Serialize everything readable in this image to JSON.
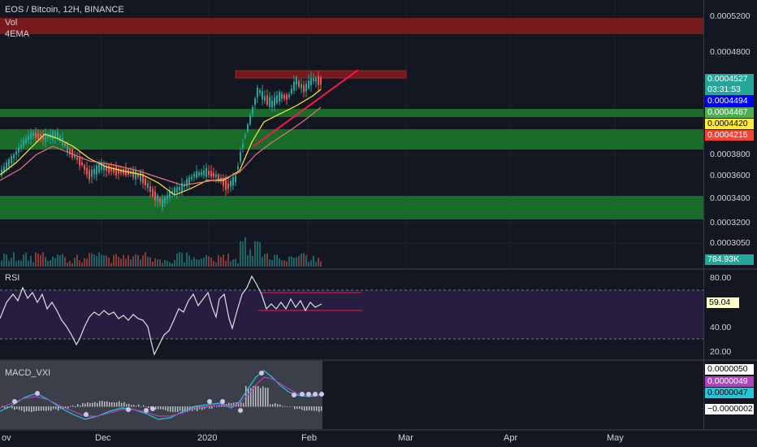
{
  "chart_title": "EOS / Bitcoin, 12H, BINANCE",
  "indicators": {
    "vol": "Vol",
    "ema": "4EMA",
    "rsi": "RSI",
    "macd": "MACD_VXI"
  },
  "price_axis": {
    "ticks": [
      "0.0005200",
      "0.0004800",
      "0.0003800",
      "0.0003600",
      "0.0003400",
      "0.0003200",
      "0.0003050"
    ],
    "current_price": "0.0004527",
    "countdown": "03:31:53",
    "ema_values": [
      {
        "value": "0.0004494",
        "color": "#0000ff"
      },
      {
        "value": "0.0004467",
        "color": "#4caf50"
      },
      {
        "value": "0.0004420",
        "color": "#ffeb3b"
      },
      {
        "value": "0.0004215",
        "color": "#f44336"
      }
    ],
    "volume": "784.93K"
  },
  "rsi_axis": {
    "ticks": [
      "80.00",
      "40.00",
      "20.00"
    ],
    "value": "59.04",
    "upper": 70,
    "lower": 30
  },
  "macd_axis": {
    "values": [
      {
        "value": "0.0000050",
        "color": "#ffffff",
        "text": "#000000"
      },
      {
        "value": "0.0000049",
        "color": "#ab47bc",
        "text": "#ffffff"
      },
      {
        "value": "0.0000047",
        "color": "#26c6da",
        "text": "#000000"
      },
      {
        "value": "−0.0000002",
        "color": "#ffffff",
        "text": "#000000"
      }
    ]
  },
  "time_axis": [
    "ov",
    "Dec",
    "2020",
    "Feb",
    "Mar",
    "Apr",
    "May"
  ],
  "colors": {
    "support": "#1b7a2a",
    "resistance": "#8b1a1a",
    "up": "#26a69a",
    "down": "#ef5350"
  }
}
